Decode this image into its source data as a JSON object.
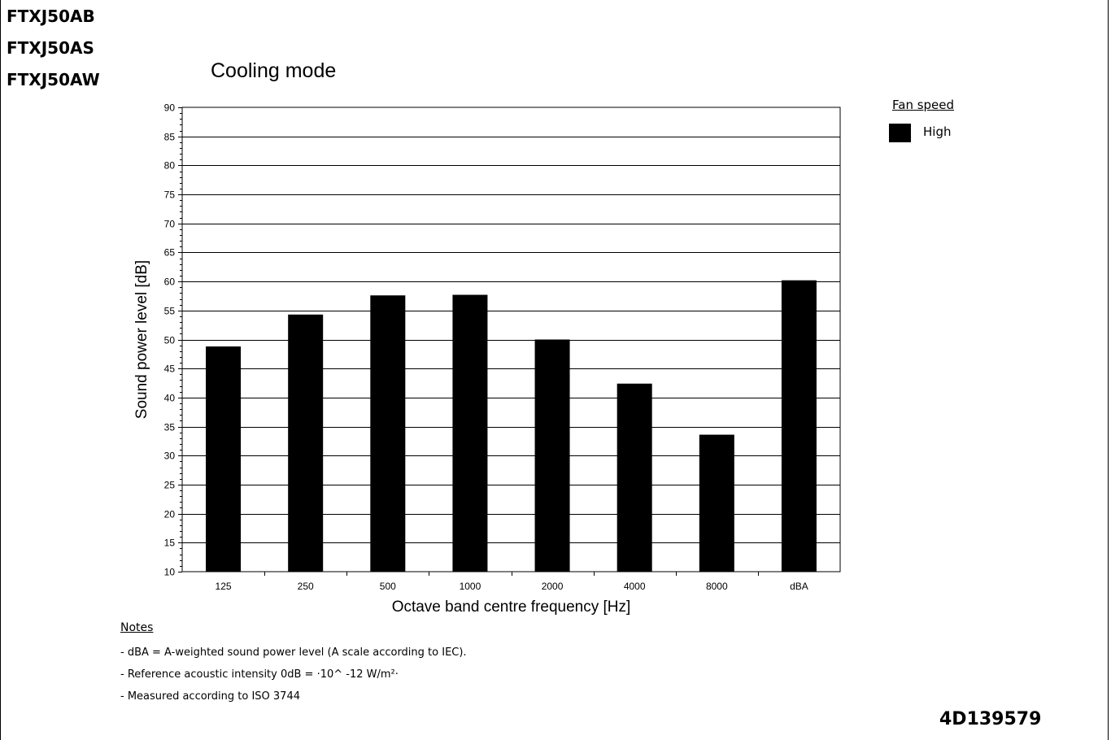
{
  "models": [
    "FTXJ50AB",
    "FTXJ50AS",
    "FTXJ50AW"
  ],
  "chart_data": {
    "type": "bar",
    "title": "Cooling mode",
    "categories": [
      "125",
      "250",
      "500",
      "1000",
      "2000",
      "4000",
      "8000",
      "dBA"
    ],
    "series": [
      {
        "name": "High",
        "values": [
          48.8,
          54.3,
          57.6,
          57.7,
          50.0,
          42.4,
          33.6,
          60.2
        ],
        "color": "#000000"
      }
    ],
    "xlabel": "Octave band centre frequency [Hz]",
    "ylabel": "Sound power level [dB]",
    "ylim": [
      10,
      90
    ],
    "yticks": [
      "10",
      "15",
      "20",
      "25",
      "30",
      "35",
      "40",
      "45",
      "50",
      "55",
      "60",
      "65",
      "70",
      "75",
      "80",
      "85",
      "90"
    ],
    "grid": "horizontal",
    "legend_title": "Fan speed",
    "legend_position": "top-right"
  },
  "notes": {
    "title": "Notes",
    "lines": [
      "- dBA = A-weighted sound power level (A scale according to IEC).",
      "- Reference acoustic intensity 0dB = ·10^ -12 W/m²·",
      "- Measured according to ISO 3744"
    ]
  },
  "document_code": "4D139579"
}
